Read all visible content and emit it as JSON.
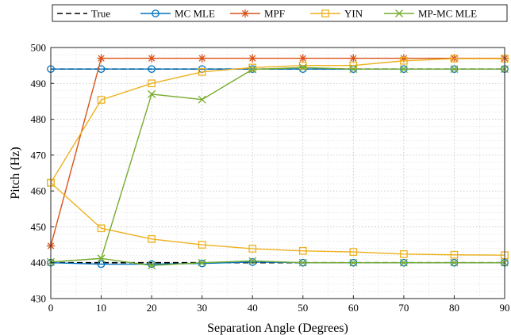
{
  "chart_data": {
    "type": "line",
    "xlabel": "Separation Angle (Degrees)",
    "ylabel": "Pitch (Hz)",
    "xlim": [
      0,
      90
    ],
    "ylim": [
      430,
      500
    ],
    "xticks": [
      "0",
      "10",
      "20",
      "30",
      "40",
      "50",
      "60",
      "70",
      "80",
      "90"
    ],
    "yticks": [
      "430",
      "440",
      "450",
      "460",
      "470",
      "480",
      "490",
      "500"
    ],
    "grid": true,
    "legend_position": "top",
    "x": [
      0,
      10,
      20,
      30,
      40,
      50,
      60,
      70,
      80,
      90
    ],
    "series": [
      {
        "name": "True",
        "color": "#000000",
        "dash": "dashed",
        "marker": "none",
        "lines": [
          {
            "x": [
              0,
              90
            ],
            "y": [
              494,
              494
            ]
          },
          {
            "x": [
              0,
              90
            ],
            "y": [
              440,
              440
            ]
          }
        ]
      },
      {
        "name": "MC MLE",
        "color": "#0072BD",
        "marker": "circle",
        "lines": [
          {
            "x": [
              0,
              10,
              20,
              30,
              40,
              50,
              60,
              70,
              80,
              90
            ],
            "y": [
              494,
              494,
              494,
              494,
              494,
              494,
              494,
              494,
              494,
              494
            ]
          },
          {
            "x": [
              0,
              10,
              20,
              30,
              40,
              50,
              60,
              70,
              80,
              90
            ],
            "y": [
              440,
              439.6,
              439.6,
              439.8,
              440.2,
              440,
              440,
              440,
              440,
              440
            ]
          }
        ]
      },
      {
        "name": "MPF",
        "color": "#D95319",
        "marker": "asterisk",
        "lines": [
          {
            "x": [
              0,
              10,
              20,
              30,
              40,
              50,
              60,
              70,
              80,
              90
            ],
            "y": [
              444.7,
              497,
              497,
              497,
              497,
              497,
              497,
              497,
              497,
              497
            ]
          }
        ]
      },
      {
        "name": "YIN",
        "color": "#EDB120",
        "marker": "square",
        "lines": [
          {
            "x": [
              0,
              10,
              20,
              30,
              40,
              50,
              60,
              70,
              80,
              90
            ],
            "y": [
              462.3,
              485.4,
              490,
              493.2,
              494.4,
              495,
              495,
              496.3,
              496.9,
              496.9
            ]
          },
          {
            "x": [
              0,
              10,
              20,
              30,
              40,
              50,
              60,
              70,
              80,
              90
            ],
            "y": [
              462.3,
              449.6,
              446.6,
              445,
              443.9,
              443.3,
              443,
              442.4,
              442.2,
              442.1
            ]
          }
        ]
      },
      {
        "name": "MP-MC MLE",
        "color": "#77AC30",
        "marker": "x",
        "lines": [
          {
            "x": [
              0,
              10,
              20,
              30,
              40,
              50,
              60,
              70,
              80,
              90
            ],
            "y": [
              440.2,
              441.2,
              487,
              485.5,
              493.9,
              494.4,
              494,
              494,
              494,
              494
            ]
          },
          {
            "x": [
              0,
              10,
              20,
              30,
              40,
              50,
              60,
              70,
              80,
              90
            ],
            "y": [
              440.2,
              441.2,
              439.2,
              440,
              440.5,
              440,
              440,
              440,
              440,
              440
            ]
          }
        ]
      }
    ]
  }
}
